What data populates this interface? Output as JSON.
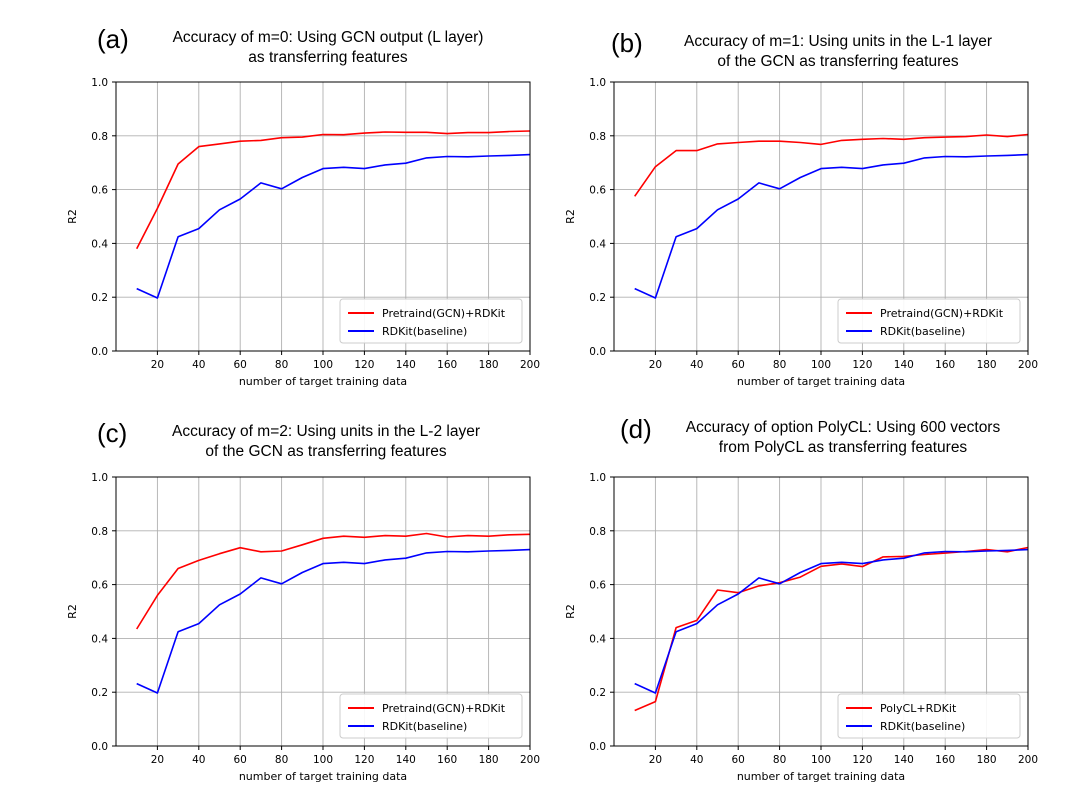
{
  "chart_data": [
    {
      "type": "line",
      "panel": "(a)",
      "title": [
        "Accuracy of m=0: Using GCN output (L layer)",
        "as transferring features"
      ],
      "xlabel": "number of target training data",
      "ylabel": "R2",
      "xlim": [
        0,
        200
      ],
      "ylim": [
        0.0,
        1.0
      ],
      "xticks": [
        20,
        40,
        60,
        80,
        100,
        120,
        140,
        160,
        180,
        200
      ],
      "yticks": [
        0.0,
        0.2,
        0.4,
        0.6,
        0.8,
        1.0
      ],
      "grid": true,
      "legend_loc": "lower-right",
      "x": [
        10,
        20,
        30,
        40,
        50,
        60,
        70,
        80,
        90,
        100,
        110,
        120,
        130,
        140,
        150,
        160,
        170,
        180,
        190,
        200
      ],
      "series": [
        {
          "name": "Pretraind(GCN)+RDKit",
          "color": "#ff0000",
          "values": [
            0.38,
            0.53,
            0.695,
            0.76,
            0.77,
            0.78,
            0.783,
            0.793,
            0.795,
            0.805,
            0.804,
            0.81,
            0.814,
            0.813,
            0.813,
            0.808,
            0.812,
            0.812,
            0.816,
            0.818
          ]
        },
        {
          "name": "RDKit(baseline)",
          "color": "#0000ff",
          "values": [
            0.232,
            0.197,
            0.425,
            0.455,
            0.525,
            0.565,
            0.625,
            0.603,
            0.645,
            0.678,
            0.683,
            0.678,
            0.692,
            0.698,
            0.718,
            0.723,
            0.722,
            0.725,
            0.727,
            0.73
          ]
        }
      ]
    },
    {
      "type": "line",
      "panel": "(b)",
      "title": [
        "Accuracy of m=1: Using units in the L-1 layer",
        "of the GCN as transferring features"
      ],
      "xlabel": "number of target training data",
      "ylabel": "R2",
      "xlim": [
        0,
        200
      ],
      "ylim": [
        0.0,
        1.0
      ],
      "xticks": [
        20,
        40,
        60,
        80,
        100,
        120,
        140,
        160,
        180,
        200
      ],
      "yticks": [
        0.0,
        0.2,
        0.4,
        0.6,
        0.8,
        1.0
      ],
      "grid": true,
      "legend_loc": "lower-right",
      "x": [
        10,
        20,
        30,
        40,
        50,
        60,
        70,
        80,
        90,
        100,
        110,
        120,
        130,
        140,
        150,
        160,
        170,
        180,
        190,
        200
      ],
      "series": [
        {
          "name": "Pretraind(GCN)+RDKit",
          "color": "#ff0000",
          "values": [
            0.575,
            0.685,
            0.745,
            0.745,
            0.77,
            0.775,
            0.78,
            0.78,
            0.775,
            0.768,
            0.783,
            0.787,
            0.79,
            0.787,
            0.793,
            0.795,
            0.797,
            0.803,
            0.797,
            0.805
          ]
        },
        {
          "name": "RDKit(baseline)",
          "color": "#0000ff",
          "values": [
            0.232,
            0.197,
            0.425,
            0.455,
            0.525,
            0.565,
            0.625,
            0.603,
            0.645,
            0.678,
            0.683,
            0.678,
            0.692,
            0.698,
            0.718,
            0.723,
            0.722,
            0.725,
            0.727,
            0.73
          ]
        }
      ]
    },
    {
      "type": "line",
      "panel": "(c)",
      "title": [
        "Accuracy of m=2: Using units in the L-2 layer",
        "of the GCN as transferring features"
      ],
      "xlabel": "number of target training data",
      "ylabel": "R2",
      "xlim": [
        0,
        200
      ],
      "ylim": [
        0.0,
        1.0
      ],
      "xticks": [
        20,
        40,
        60,
        80,
        100,
        120,
        140,
        160,
        180,
        200
      ],
      "yticks": [
        0.0,
        0.2,
        0.4,
        0.6,
        0.8,
        1.0
      ],
      "grid": true,
      "legend_loc": "lower-right",
      "x": [
        10,
        20,
        30,
        40,
        50,
        60,
        70,
        80,
        90,
        100,
        110,
        120,
        130,
        140,
        150,
        160,
        170,
        180,
        190,
        200
      ],
      "series": [
        {
          "name": "Pretraind(GCN)+RDKit",
          "color": "#ff0000",
          "values": [
            0.435,
            0.56,
            0.66,
            0.69,
            0.715,
            0.737,
            0.722,
            0.725,
            0.748,
            0.772,
            0.78,
            0.776,
            0.782,
            0.78,
            0.79,
            0.777,
            0.782,
            0.78,
            0.785,
            0.787
          ]
        },
        {
          "name": "RDKit(baseline)",
          "color": "#0000ff",
          "values": [
            0.232,
            0.197,
            0.425,
            0.455,
            0.525,
            0.565,
            0.625,
            0.603,
            0.645,
            0.678,
            0.683,
            0.678,
            0.692,
            0.698,
            0.718,
            0.723,
            0.722,
            0.725,
            0.727,
            0.73
          ]
        }
      ]
    },
    {
      "type": "line",
      "panel": "(d)",
      "title": [
        "Accuracy of option PolyCL: Using 600 vectors",
        "from PolyCL as transferring features"
      ],
      "xlabel": "number of target training data",
      "ylabel": "R2",
      "xlim": [
        0,
        200
      ],
      "ylim": [
        0.0,
        1.0
      ],
      "xticks": [
        20,
        40,
        60,
        80,
        100,
        120,
        140,
        160,
        180,
        200
      ],
      "yticks": [
        0.0,
        0.2,
        0.4,
        0.6,
        0.8,
        1.0
      ],
      "grid": true,
      "legend_loc": "lower-right",
      "x": [
        10,
        20,
        30,
        40,
        50,
        60,
        70,
        80,
        90,
        100,
        110,
        120,
        130,
        140,
        150,
        160,
        170,
        180,
        190,
        200
      ],
      "series": [
        {
          "name": "PolyCL+RDKit",
          "color": "#ff0000",
          "values": [
            0.132,
            0.165,
            0.44,
            0.467,
            0.58,
            0.57,
            0.595,
            0.607,
            0.628,
            0.668,
            0.677,
            0.667,
            0.703,
            0.705,
            0.712,
            0.717,
            0.723,
            0.73,
            0.722,
            0.738
          ]
        },
        {
          "name": "RDKit(baseline)",
          "color": "#0000ff",
          "values": [
            0.232,
            0.197,
            0.425,
            0.455,
            0.525,
            0.565,
            0.625,
            0.603,
            0.645,
            0.678,
            0.683,
            0.678,
            0.692,
            0.698,
            0.718,
            0.723,
            0.722,
            0.725,
            0.727,
            0.73
          ]
        }
      ]
    }
  ]
}
